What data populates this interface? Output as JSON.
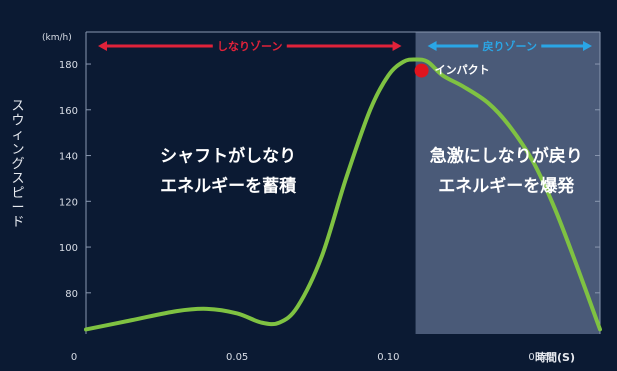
{
  "chart_data": {
    "type": "line",
    "unit_label": "(km/h)",
    "ylabel": "スウィングスピード",
    "xlabel": "時間(S)",
    "x_ticks": [
      {
        "value": 0,
        "label": "0"
      },
      {
        "value": 0.05,
        "label": "0.05"
      },
      {
        "value": 0.1,
        "label": "0.10"
      },
      {
        "value": 0.15,
        "label": "0.15"
      }
    ],
    "y_ticks": [
      {
        "value": 80,
        "label": "80"
      },
      {
        "value": 100,
        "label": "100"
      },
      {
        "value": 120,
        "label": "120"
      },
      {
        "value": 140,
        "label": "140"
      },
      {
        "value": 160,
        "label": "160"
      },
      {
        "value": 180,
        "label": "180"
      }
    ],
    "xlim": [
      0,
      0.17
    ],
    "ylim": [
      62,
      194
    ],
    "series": [
      {
        "color": "#7fc242",
        "x": [
          0,
          0.015,
          0.03,
          0.04,
          0.05,
          0.058,
          0.064,
          0.07,
          0.078,
          0.086,
          0.094,
          0.1,
          0.105,
          0.109,
          0.113,
          0.118,
          0.125,
          0.133,
          0.14,
          0.148,
          0.155,
          0.162,
          0.17
        ],
        "y": [
          64,
          68,
          72,
          73,
          71,
          67,
          67,
          74,
          96,
          130,
          160,
          175,
          181,
          182,
          181,
          175,
          170,
          163,
          153,
          137,
          117,
          93,
          64
        ]
      }
    ],
    "zones": [
      {
        "label": "しなりゾーン",
        "color": "#e0223a",
        "x_start": 0,
        "x_end": 0.109
      },
      {
        "label": "戻りゾーン",
        "color": "#2aa6e6",
        "x_start": 0.109,
        "x_end": 0.17
      }
    ],
    "shaded_region": {
      "x_start": 0.109,
      "x_end": 0.17,
      "color": "#4a5a78"
    },
    "annotations": [
      {
        "lines": [
          "シャフトがしなり",
          "エネルギーを蓄積"
        ],
        "x": 0.047,
        "y": 133
      },
      {
        "lines": [
          "急激にしなりが戻り",
          "エネルギーを爆発"
        ],
        "x": 0.139,
        "y": 133
      }
    ],
    "impact": {
      "label": "インパクト",
      "x": 0.11,
      "y": 178,
      "color": "#e0141e"
    },
    "grid": false
  }
}
